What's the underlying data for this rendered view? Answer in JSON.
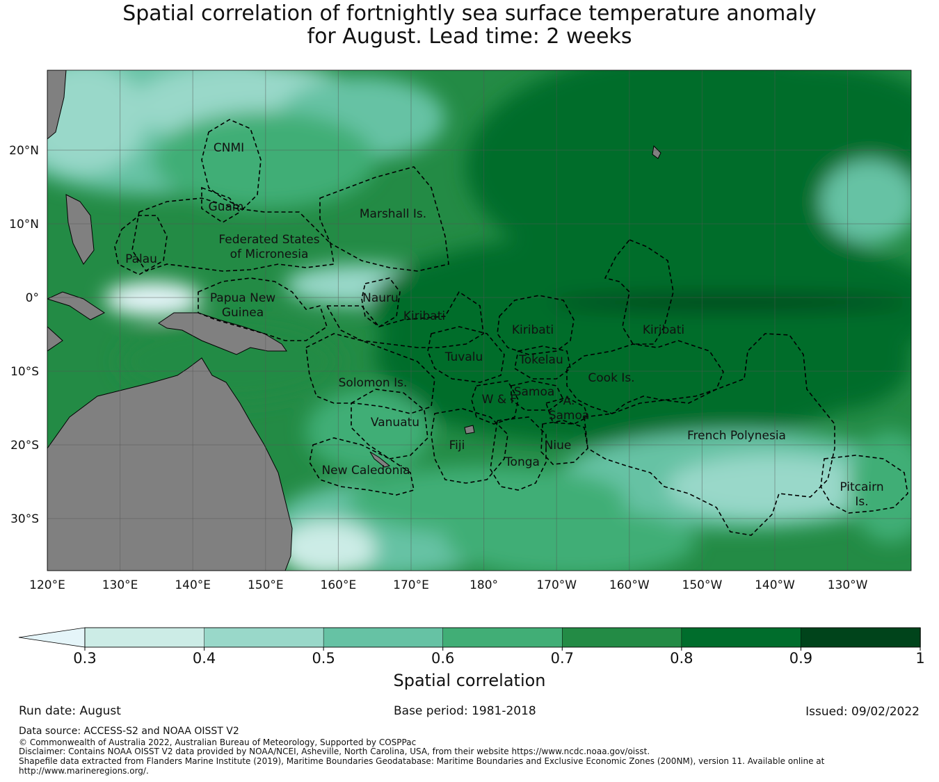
{
  "title": {
    "line1": "Spatial correlation of fortnightly sea surface temperature anomaly",
    "line2": "for August. Lead time: 2 weeks"
  },
  "map": {
    "lon_ticks": [
      "120°E",
      "130°E",
      "140°E",
      "150°E",
      "160°E",
      "170°E",
      "180°",
      "170°W",
      "160°W",
      "150°W",
      "140°W",
      "130°W"
    ],
    "lat_ticks": [
      "20°N",
      "10°N",
      "0°",
      "10°S",
      "20°S",
      "30°S"
    ],
    "regions": [
      {
        "id": "cnmi",
        "lines": [
          "CNMI"
        ]
      },
      {
        "id": "guam",
        "lines": [
          "Guam"
        ]
      },
      {
        "id": "marshall",
        "lines": [
          "Marshall Is."
        ]
      },
      {
        "id": "fsm",
        "lines": [
          "Federated States",
          "of Micronesia"
        ]
      },
      {
        "id": "palau",
        "lines": [
          "Palau"
        ]
      },
      {
        "id": "png",
        "lines": [
          "Papua New",
          "Guinea"
        ]
      },
      {
        "id": "nauru",
        "lines": [
          "Nauru"
        ]
      },
      {
        "id": "kiribati-w",
        "lines": [
          "Kiribati"
        ]
      },
      {
        "id": "kiribati-c",
        "lines": [
          "Kiribati"
        ]
      },
      {
        "id": "kiribati-e",
        "lines": [
          "Kiribati"
        ]
      },
      {
        "id": "tuvalu",
        "lines": [
          "Tuvalu"
        ]
      },
      {
        "id": "tokelau",
        "lines": [
          "Tokelau"
        ]
      },
      {
        "id": "solomon",
        "lines": [
          "Solomon Is."
        ]
      },
      {
        "id": "cook",
        "lines": [
          "Cook Is."
        ]
      },
      {
        "id": "samoa",
        "lines": [
          "Samoa"
        ]
      },
      {
        "id": "wf",
        "lines": [
          "W & F"
        ]
      },
      {
        "id": "asamoa",
        "lines": [
          "A.",
          "Samoa"
        ]
      },
      {
        "id": "vanuatu",
        "lines": [
          "Vanuatu"
        ]
      },
      {
        "id": "fiji",
        "lines": [
          "Fiji"
        ]
      },
      {
        "id": "niue",
        "lines": [
          "Niue"
        ]
      },
      {
        "id": "tonga",
        "lines": [
          "Tonga"
        ]
      },
      {
        "id": "frpoly",
        "lines": [
          "French Polynesia"
        ]
      },
      {
        "id": "newcal",
        "lines": [
          "New Caledonia"
        ]
      },
      {
        "id": "pitcairn",
        "lines": [
          "Pitcairn",
          "Is."
        ]
      }
    ]
  },
  "colorbar": {
    "label": "Spatial correlation",
    "ticks": [
      "0.3",
      "0.4",
      "0.5",
      "0.6",
      "0.7",
      "0.8",
      "0.9",
      "1"
    ],
    "colors": [
      "#ccece6",
      "#99d8c9",
      "#66c2a4",
      "#41ae76",
      "#238b45",
      "#006d2c",
      "#00441b"
    ],
    "under_color": "#e5f5f9"
  },
  "meta": {
    "run_date": "Run date: August",
    "base_period": "Base period: 1981-2018",
    "issued": "Issued: 09/02/2022"
  },
  "footer": {
    "data_source": "Data source: ACCESS-S2 and NOAA OISST V2",
    "copyright": "© Commonwealth of Australia 2022, Australian Bureau of Meteorology, Supported by COSPPac",
    "disclaimer": "Disclaimer: Contains NOAA OISST V2 data provided by NOAA/NCEI, Asheville, North Carolina, USA, from their website https://www.ncdc.noaa.gov/oisst.",
    "shapefile_1": "Shapefile data extracted from Flanders Marine Institute (2019), Maritime Boundaries Geodatabase: Maritime Boundaries and Exclusive Economic Zones (200NM), version 11. Available online at",
    "shapefile_2": "http://www.marineregions.org/."
  }
}
